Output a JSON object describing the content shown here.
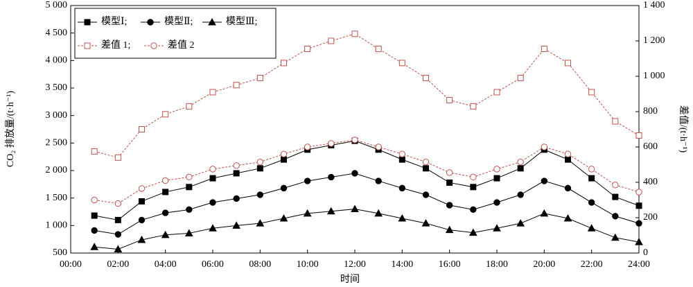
{
  "chart_data": {
    "type": "line",
    "x_label": "时间",
    "y_label": "CO₂ 排放量/(t·h⁻¹)",
    "y2_label": "差值/(t·h⁻¹)",
    "x": [
      1,
      2,
      3,
      4,
      5,
      6,
      7,
      8,
      9,
      10,
      11,
      12,
      13,
      14,
      15,
      16,
      17,
      18,
      19,
      20,
      21,
      22,
      23,
      24
    ],
    "xlim": [
      0,
      24
    ],
    "xticks": [
      {
        "value": 0,
        "label": "00:00"
      },
      {
        "value": 2,
        "label": "02:00"
      },
      {
        "value": 4,
        "label": "04:00"
      },
      {
        "value": 6,
        "label": "06:00"
      },
      {
        "value": 8,
        "label": "08:00"
      },
      {
        "value": 10,
        "label": "10:00"
      },
      {
        "value": 12,
        "label": "12:00"
      },
      {
        "value": 14,
        "label": "14:00"
      },
      {
        "value": 16,
        "label": "16:00"
      },
      {
        "value": 18,
        "label": "18:00"
      },
      {
        "value": 20,
        "label": "20:00"
      },
      {
        "value": 22,
        "label": "22:00"
      },
      {
        "value": 24,
        "label": "24:00"
      }
    ],
    "ylim": [
      500,
      5000
    ],
    "yticks": [
      500,
      {
        "value": 1000,
        "label": "1 000"
      },
      {
        "value": 1500,
        "label": "1 500"
      },
      {
        "value": 2000,
        "label": "2 000"
      },
      {
        "value": 2500,
        "label": "2 500"
      },
      {
        "value": 3000,
        "label": "3 000"
      },
      {
        "value": 3500,
        "label": "3 500"
      },
      {
        "value": 4000,
        "label": "4 000"
      },
      {
        "value": 4500,
        "label": "4 500"
      },
      {
        "value": 5000,
        "label": "5 000"
      }
    ],
    "y2lim": [
      0,
      1400
    ],
    "y2ticks": [
      0,
      200,
      400,
      600,
      800,
      {
        "value": 1000,
        "label": "1 000"
      },
      {
        "value": 1200,
        "label": "1 200"
      },
      {
        "value": 1400,
        "label": "1 400"
      }
    ],
    "grid": false,
    "legend": "upper left",
    "series": [
      {
        "name": "模型Ⅰ;",
        "color": "#000000",
        "marker": "square",
        "dash": false,
        "values": [
          1180,
          1100,
          1440,
          1610,
          1700,
          1860,
          1950,
          2040,
          2200,
          2380,
          2460,
          2540,
          2380,
          2200,
          2040,
          1780,
          1700,
          1860,
          2040,
          2380,
          2200,
          1860,
          1520,
          1360
        ]
      },
      {
        "name": "模型Ⅱ;",
        "color": "#000000",
        "marker": "circle",
        "dash": false,
        "values": [
          910,
          840,
          1100,
          1230,
          1290,
          1420,
          1490,
          1560,
          1680,
          1810,
          1880,
          1950,
          1810,
          1680,
          1560,
          1370,
          1290,
          1420,
          1560,
          1810,
          1680,
          1420,
          1170,
          1040
        ]
      },
      {
        "name": "模型Ⅲ;",
        "color": "#000000",
        "marker": "triangle",
        "dash": false,
        "values": [
          610,
          570,
          740,
          830,
          860,
          950,
          1000,
          1040,
          1130,
          1220,
          1260,
          1300,
          1220,
          1130,
          1040,
          920,
          870,
          950,
          1040,
          1220,
          1130,
          950,
          780,
          700
        ]
      },
      {
        "name": "差值 1;",
        "color": "#c0504d",
        "marker": "open-square",
        "dash": true,
        "axis": "y2",
        "values": [
          575,
          540,
          700,
          785,
          830,
          910,
          950,
          990,
          1075,
          1155,
          1200,
          1240,
          1155,
          1075,
          990,
          865,
          830,
          910,
          990,
          1155,
          1075,
          910,
          745,
          665
        ]
      },
      {
        "name": "差值 2",
        "color": "#c0504d",
        "marker": "open-circle",
        "dash": true,
        "axis": "y2",
        "values": [
          300,
          280,
          365,
          410,
          430,
          475,
          495,
          515,
          560,
          600,
          620,
          640,
          600,
          560,
          515,
          455,
          430,
          475,
          515,
          600,
          560,
          475,
          385,
          345
        ]
      }
    ]
  }
}
